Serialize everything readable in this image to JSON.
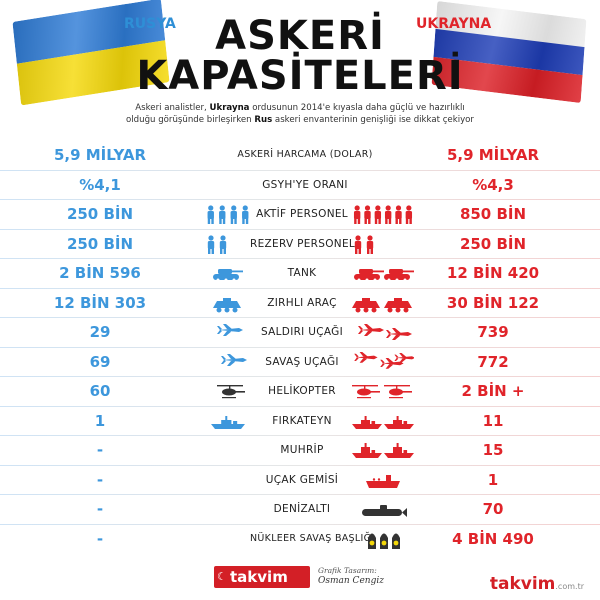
{
  "header": {
    "left_country": "RUSYA",
    "right_country": "UKRAYNA",
    "title_line1": "ASKERİ",
    "title_line2": "KAPASİTELERİ",
    "intro_part1": "Askeri analistler, ",
    "intro_bold1": "Ukrayna",
    "intro_part2": " ordusunun 2014'e kıyasla daha güçlü ve hazırlıklı olduğu görüşünde birleşirken ",
    "intro_bold2": "Rus",
    "intro_part3": " askeri envanterinin genişliği ise dikkat çekiyor"
  },
  "colors": {
    "left_value": "#3d97dc",
    "right_value": "#e0242a",
    "ua_blue": "#2f7cd6",
    "ua_yellow": "#f5d90a",
    "ru_white": "#f4f4f4",
    "ru_blue": "#1e3db6",
    "ru_red": "#dc1f26",
    "brand_red": "#d31f26"
  },
  "rows": [
    {
      "left": "5,9 MİLYAR",
      "label": "ASKERİ HARCAMA (DOLAR)",
      "right": "5,9 MİLYAR",
      "icon": "none"
    },
    {
      "left": "%4,1",
      "label": "GSYH'YE ORANI",
      "right": "%4,3",
      "icon": "none"
    },
    {
      "left": "250 BİN",
      "label": "AKTİF PERSONEL",
      "right": "850 BİN",
      "icon": "soldier-icon"
    },
    {
      "left": "250 BİN",
      "label": "REZERV PERSONEL",
      "right": "250 BİN",
      "icon": "reserve-soldier-icon"
    },
    {
      "left": "2 BİN 596",
      "label": "TANK",
      "right": "12 BİN 420",
      "icon": "tank-icon"
    },
    {
      "left": "12 BİN 303",
      "label": "ZIRHLI ARAÇ",
      "right": "30 BİN 122",
      "icon": "armored-vehicle-icon"
    },
    {
      "left": "29",
      "label": "SALDIRI UÇAĞI",
      "right": "739",
      "icon": "attack-jet-icon"
    },
    {
      "left": "69",
      "label": "SAVAŞ UÇAĞI",
      "right": "772",
      "icon": "fighter-jet-icon"
    },
    {
      "left": "60",
      "label": "HELİKOPTER",
      "right": "2 BİN +",
      "icon": "helicopter-icon"
    },
    {
      "left": "1",
      "label": "FIRKATEYN",
      "right": "11",
      "icon": "frigate-icon"
    },
    {
      "left": "-",
      "label": "MUHRİP",
      "right": "15",
      "icon": "destroyer-icon"
    },
    {
      "left": "-",
      "label": "UÇAK GEMİSİ",
      "right": "1",
      "icon": "aircraft-carrier-icon"
    },
    {
      "left": "-",
      "label": "DENİZALTI",
      "right": "70",
      "icon": "submarine-icon"
    },
    {
      "left": "-",
      "label": "NÜKLEER SAVAŞ BAŞLIĞI",
      "right": "4 BİN 490",
      "icon": "nuclear-warhead-icon"
    }
  ],
  "footer": {
    "left_logo": "takvim",
    "designer_caption": "Grafik Tasarım:",
    "designer_name": "Osman Cengiz",
    "right_logo": "takvim",
    "right_logo_suffix": ".com.tr"
  }
}
